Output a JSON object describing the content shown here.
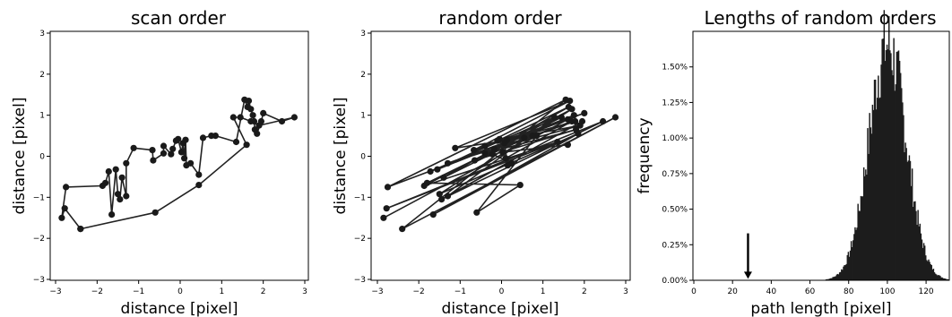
{
  "chart_data": [
    {
      "type": "line",
      "title": "scan order",
      "xlabel": "distance [pixel]",
      "ylabel": "distance [pixel]",
      "xlim": [
        -3,
        3
      ],
      "ylim": [
        -3,
        3
      ],
      "xticks": [
        "-3",
        "-2",
        "-1",
        "0",
        "1",
        "2",
        "3"
      ],
      "yticks": [
        "-3",
        "-2",
        "-1",
        "0",
        "1",
        "2",
        "3"
      ],
      "series": [
        {
          "markers": true,
          "points": [
            [
              -2.4,
              -1.77
            ],
            [
              -2.78,
              -1.27
            ],
            [
              -2.85,
              -1.5
            ],
            [
              -2.75,
              -0.75
            ],
            [
              -1.87,
              -0.72
            ],
            [
              -1.8,
              -0.65
            ],
            [
              -1.72,
              -0.37
            ],
            [
              -1.65,
              -1.42
            ],
            [
              -1.55,
              -0.32
            ],
            [
              -1.5,
              -0.92
            ],
            [
              -1.45,
              -1.05
            ],
            [
              -1.4,
              -0.52
            ],
            [
              -1.3,
              -0.97
            ],
            [
              -1.3,
              -0.17
            ],
            [
              -1.12,
              0.2
            ],
            [
              -0.67,
              0.15
            ],
            [
              -0.65,
              -0.1
            ],
            [
              -0.4,
              0.07
            ],
            [
              -0.4,
              0.25
            ],
            [
              -0.22,
              0.05
            ],
            [
              -0.18,
              0.18
            ],
            [
              -0.1,
              0.38
            ],
            [
              -0.05,
              0.42
            ],
            [
              0.03,
              0.1
            ],
            [
              0.07,
              0.32
            ],
            [
              0.1,
              -0.05
            ],
            [
              0.13,
              0.4
            ],
            [
              0.15,
              -0.22
            ],
            [
              0.25,
              -0.17
            ],
            [
              0.45,
              -0.45
            ],
            [
              0.55,
              0.45
            ],
            [
              0.75,
              0.5
            ],
            [
              0.85,
              0.5
            ],
            [
              1.35,
              0.35
            ],
            [
              1.55,
              1.38
            ],
            [
              1.62,
              1.2
            ],
            [
              1.65,
              1.35
            ],
            [
              1.7,
              1.15
            ],
            [
              1.75,
              1.0
            ],
            [
              1.78,
              0.85
            ],
            [
              1.8,
              0.65
            ],
            [
              1.85,
              0.55
            ],
            [
              1.95,
              0.85
            ],
            [
              2.0,
              1.05
            ],
            [
              2.45,
              0.85
            ],
            [
              2.75,
              0.95
            ],
            [
              1.9,
              0.75
            ],
            [
              1.7,
              0.85
            ],
            [
              1.45,
              0.95
            ],
            [
              1.28,
              0.95
            ],
            [
              1.6,
              0.28
            ],
            [
              0.45,
              -0.7
            ],
            [
              -0.6,
              -1.37
            ],
            [
              -2.4,
              -1.77
            ]
          ]
        }
      ]
    },
    {
      "type": "line",
      "title": "random order",
      "xlabel": "distance [pixel]",
      "ylabel": "distance [pixel]",
      "xlim": [
        -3,
        3
      ],
      "ylim": [
        -3,
        3
      ],
      "xticks": [
        "-3",
        "-2",
        "-1",
        "0",
        "1",
        "2",
        "3"
      ],
      "yticks": [
        "-3",
        "-2",
        "-1",
        "0",
        "1",
        "2",
        "3"
      ],
      "series": [
        {
          "markers": true,
          "points": [
            [
              -2.85,
              -1.5
            ],
            [
              1.6,
              0.9
            ],
            [
              -2.75,
              -0.75
            ],
            [
              1.55,
              1.38
            ],
            [
              -2.4,
              -1.77
            ],
            [
              2.75,
              0.95
            ],
            [
              -1.65,
              -1.42
            ],
            [
              1.85,
              0.55
            ],
            [
              -1.5,
              -0.92
            ],
            [
              1.7,
              1.15
            ],
            [
              -1.87,
              -0.72
            ],
            [
              1.35,
              0.35
            ],
            [
              -2.78,
              -1.27
            ],
            [
              2.45,
              0.85
            ],
            [
              -1.45,
              -1.05
            ],
            [
              1.95,
              0.85
            ],
            [
              -1.3,
              -0.97
            ],
            [
              1.28,
              0.95
            ],
            [
              -1.72,
              -0.37
            ],
            [
              1.75,
              1.0
            ],
            [
              -1.55,
              -0.32
            ],
            [
              1.62,
              1.2
            ],
            [
              -1.4,
              -0.52
            ],
            [
              0.55,
              0.45
            ],
            [
              -1.12,
              0.2
            ],
            [
              1.65,
              1.35
            ],
            [
              -0.67,
              0.15
            ],
            [
              2.0,
              1.05
            ],
            [
              -1.3,
              -0.17
            ],
            [
              0.85,
              0.5
            ],
            [
              -0.6,
              -1.37
            ],
            [
              0.45,
              -0.7
            ],
            [
              -1.8,
              -0.65
            ],
            [
              1.45,
              0.95
            ],
            [
              -0.4,
              0.25
            ],
            [
              1.78,
              0.85
            ],
            [
              -0.18,
              0.18
            ],
            [
              1.9,
              0.75
            ],
            [
              -0.1,
              0.38
            ],
            [
              0.75,
              0.5
            ],
            [
              -0.65,
              -0.1
            ],
            [
              1.8,
              0.65
            ],
            [
              -0.4,
              0.07
            ],
            [
              1.7,
              0.85
            ],
            [
              0.1,
              -0.05
            ],
            [
              0.25,
              -0.17
            ],
            [
              -0.22,
              0.05
            ],
            [
              0.13,
              0.4
            ],
            [
              0.07,
              0.32
            ],
            [
              0.15,
              -0.22
            ],
            [
              -0.05,
              0.42
            ],
            [
              0.03,
              0.1
            ],
            [
              1.6,
              0.28
            ]
          ]
        }
      ]
    },
    {
      "type": "bar",
      "subtype": "histogram",
      "title": "Lengths of random orders",
      "xlabel": "path length [pixel]",
      "ylabel": "frequency",
      "xlim": [
        0,
        132
      ],
      "ylim": [
        0,
        0.0175
      ],
      "xticks": [
        "0",
        "20",
        "40",
        "60",
        "80",
        "100",
        "120"
      ],
      "yticks": [
        "0.00%",
        "0.25%",
        "0.50%",
        "0.75%",
        "1.00%",
        "1.25%",
        "1.50%"
      ],
      "distribution": {
        "mean": 100,
        "sd": 9.5,
        "peak": 0.0166,
        "bin_width": 0.5,
        "range": [
          68,
          132
        ]
      },
      "annotations": [
        {
          "type": "arrow",
          "x": 28,
          "from_y": 0.0033,
          "to_y": 0.0001,
          "label": ""
        }
      ]
    }
  ]
}
